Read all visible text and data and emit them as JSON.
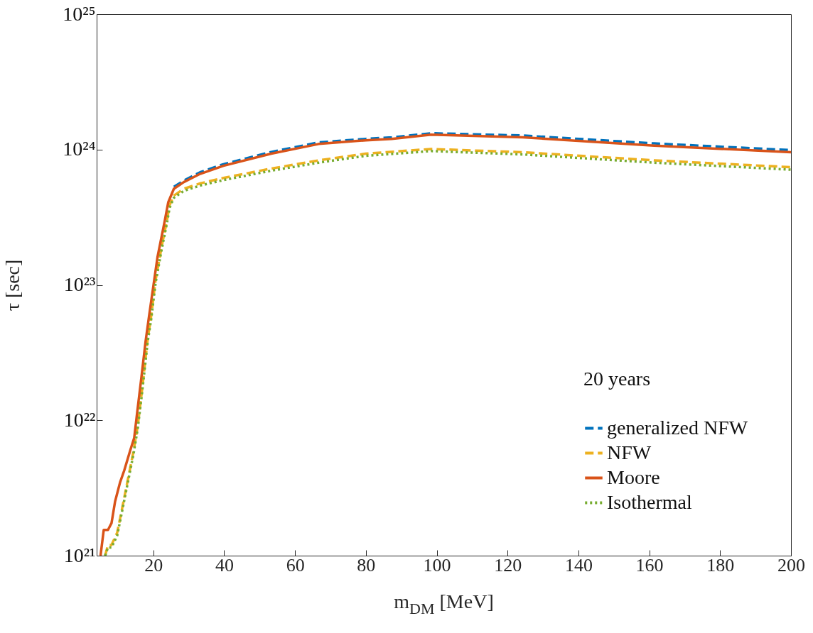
{
  "chart_data": {
    "type": "line",
    "xlabel": "m$_{DM}$ [MeV]",
    "ylabel": "τ [sec]",
    "legend_title": "20 years",
    "log": "y",
    "grid": false,
    "legend": "bottom right",
    "marker": "none",
    "xlim": [
      4,
      200
    ],
    "xticks": [
      20,
      40,
      60,
      80,
      100,
      120,
      140,
      160,
      180,
      200
    ],
    "ylim": [
      1e+21,
      1e+25
    ],
    "yticks": [
      {
        "value": 1e+21,
        "label": "10²¹"
      },
      {
        "value": 1e+22,
        "label": "10²²"
      },
      {
        "value": 1e+23,
        "label": "10²³"
      },
      {
        "value": 1e+24,
        "label": "10²⁴"
      },
      {
        "value": 1e+25,
        "label": "10²⁵"
      }
    ],
    "series": [
      {
        "name": "generalized NFW",
        "color": "#0072bd",
        "line_style": "dashed",
        "x": [
          25.8,
          28.6,
          33.2,
          39.8,
          53.3,
          66.7,
          80,
          87.3,
          98.4,
          124.3,
          161.4,
          200
        ],
        "values": [
          5.3e+23,
          5.9e+23,
          6.8e+23,
          7.8e+23,
          9.6e+23,
          1.13e+24,
          1.2e+24,
          1.23e+24,
          1.32e+24,
          1.27e+24,
          1.11e+24,
          9.9e+23
        ]
      },
      {
        "name": "NFW",
        "color": "#edb120",
        "line_style": "dashed",
        "x": [
          6.4,
          7.2,
          8.2,
          9.8,
          11.2,
          12.8,
          14.4,
          15.6,
          16.8,
          18.4,
          19.4,
          20.6,
          22.4,
          23.8,
          24.6,
          25.8,
          28.6,
          33.2,
          39.8,
          53.3,
          66.7,
          80,
          98.4,
          124.3,
          161.4,
          200
        ],
        "values": [
          1e+21,
          1.2e+21,
          1.2e+21,
          1.48e+21,
          2.24e+21,
          3.63e+21,
          5.89e+21,
          9.12e+21,
          1.66e+22,
          3.98e+22,
          5.89e+22,
          1.07e+23,
          1.95e+23,
          2.95e+23,
          3.89e+23,
          4.57e+23,
          5.13e+23,
          5.62e+23,
          6.17e+23,
          7.24e+23,
          8.32e+23,
          9.33e+23,
          1.01e+24,
          9.55e+23,
          8.32e+23,
          7.41e+23
        ]
      },
      {
        "name": "Moore",
        "color": "#d95319",
        "line_style": "solid",
        "x": [
          5.1,
          6,
          7.2,
          8.2,
          9.2,
          10.6,
          11.8,
          13.4,
          14.6,
          15.4,
          16.6,
          17.8,
          18.8,
          21.2,
          23.2,
          24.2,
          25.8,
          28.6,
          33.2,
          39.8,
          53.3,
          66.7,
          80,
          87.3,
          98.4,
          124.3,
          161.4,
          200
        ],
        "values": [
          1e+21,
          1.55e+21,
          1.55e+21,
          1.74e+21,
          2.51e+21,
          3.47e+21,
          4.27e+21,
          5.89e+21,
          7.41e+21,
          1.12e+22,
          2.04e+22,
          3.8e+22,
          5.89e+22,
          1.62e+23,
          2.95e+23,
          4.07e+23,
          5.13e+23,
          5.75e+23,
          6.61e+23,
          7.59e+23,
          9.33e+23,
          1.1e+24,
          1.17e+24,
          1.2e+24,
          1.29e+24,
          1.23e+24,
          1.07e+24,
          9.55e+23
        ]
      },
      {
        "name": "Isothermal",
        "color": "#77ac30",
        "line_style": "dotted",
        "x": [
          6.4,
          7.2,
          8.2,
          9.8,
          11.2,
          12.8,
          14.4,
          15.6,
          16.8,
          18.4,
          19.4,
          20.6,
          22.4,
          23.8,
          24.6,
          25.8,
          28.6,
          33.2,
          39.8,
          53.3,
          66.7,
          80,
          98.4,
          124.3,
          161.4,
          200
        ],
        "values": [
          1e+21,
          1.15e+21,
          1.15e+21,
          1.41e+21,
          2.14e+21,
          3.47e+21,
          5.62e+21,
          8.7e+21,
          1.58e+22,
          3.8e+22,
          5.6e+22,
          1.02e+23,
          1.86e+23,
          2.82e+23,
          3.72e+23,
          4.4e+23,
          4.95e+23,
          5.42e+23,
          5.95e+23,
          6.98e+23,
          8e+23,
          9e+23,
          9.75e+23,
          9.2e+23,
          8e+23,
          7.1e+23
        ]
      }
    ]
  }
}
